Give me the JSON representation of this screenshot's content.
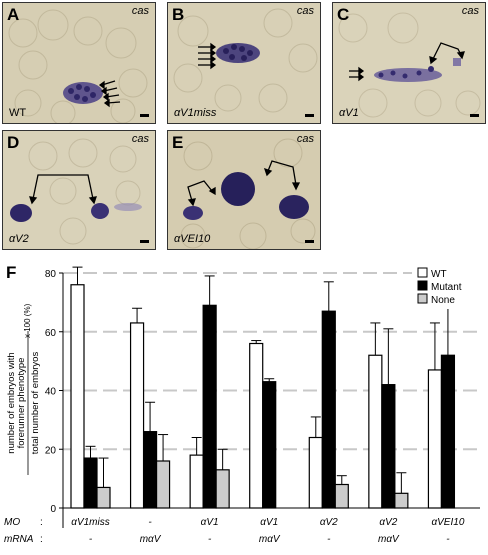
{
  "panels": [
    {
      "letter": "A",
      "marker": "cas",
      "genotype": "WT"
    },
    {
      "letter": "B",
      "marker": "cas",
      "genotype": "αV1miss"
    },
    {
      "letter": "C",
      "marker": "cas",
      "genotype": "αV1"
    },
    {
      "letter": "D",
      "marker": "cas",
      "genotype": "αV2"
    },
    {
      "letter": "E",
      "marker": "cas",
      "genotype": "αVEI10"
    }
  ],
  "chart_letter": "F",
  "chart_data": {
    "type": "bar",
    "ylabel_line1": "number of embryos with",
    "ylabel_line2": "forerunner phenotype",
    "ylabel_line3": "total number of embryos",
    "ylabel_suffix": "x 100 (%)",
    "ylim": [
      0,
      80
    ],
    "yticks": [
      0,
      20,
      40,
      60,
      80
    ],
    "grid": true,
    "legend_position": "top-right",
    "series": [
      {
        "name": "WT",
        "color": "#ffffff",
        "values": [
          76,
          63,
          18,
          56,
          24,
          52,
          47
        ],
        "errors": [
          6,
          5,
          6,
          1,
          7,
          11,
          16
        ]
      },
      {
        "name": "Mutant",
        "color": "#000000",
        "values": [
          17,
          26,
          69,
          43,
          67,
          42,
          52
        ],
        "errors": [
          4,
          10,
          10,
          1,
          10,
          19,
          16
        ]
      },
      {
        "name": "None",
        "color": "#cccccc",
        "values": [
          7,
          16,
          13,
          null,
          8,
          5,
          null
        ],
        "errors": [
          10,
          9,
          7,
          null,
          3,
          7,
          null
        ]
      }
    ],
    "row_labels": {
      "mo": "MO",
      "mrna": "mRNA"
    },
    "categories": [
      {
        "mo": "αV1miss",
        "mrna": "-"
      },
      {
        "mo": "-",
        "mrna": "mαV"
      },
      {
        "mo": "αV1",
        "mrna": "-"
      },
      {
        "mo": "αV1",
        "mrna": "mαV"
      },
      {
        "mo": "αV2",
        "mrna": "-"
      },
      {
        "mo": "αV2",
        "mrna": "mαV"
      },
      {
        "mo": "αVEI10",
        "mrna": "-"
      }
    ]
  }
}
